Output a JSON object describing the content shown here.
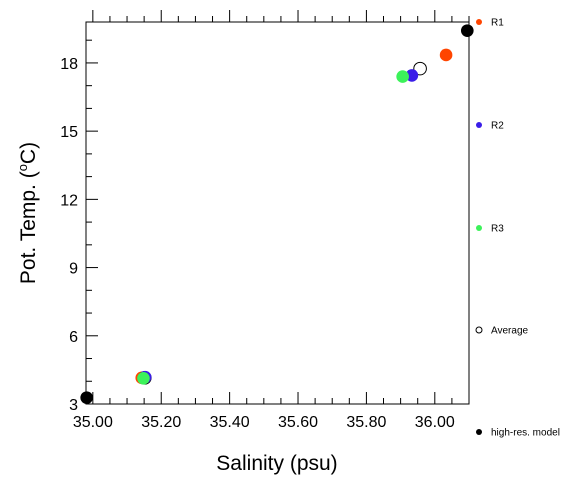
{
  "chart_data": {
    "type": "scatter",
    "title": "",
    "xlabel": "Salinity (psu)",
    "ylabel_main": "Pot. Temp. (",
    "ylabel_degree": "o",
    "ylabel_unit": "C)",
    "xlim": [
      34.98,
      36.1
    ],
    "ylim": [
      3.0,
      19.8
    ],
    "x_ticks": [
      35.0,
      35.2,
      35.4,
      35.6,
      35.8,
      36.0
    ],
    "x_tick_labels": [
      "35.00",
      "35.20",
      "35.40",
      "35.60",
      "35.80",
      "36.00"
    ],
    "x_minor_step": 0.05,
    "y_ticks": [
      3,
      6,
      9,
      12,
      15,
      18
    ],
    "y_tick_labels": [
      "3",
      "6",
      "9",
      "12",
      "15",
      "18"
    ],
    "y_minor_step": 1,
    "grid": false,
    "legend_position": "right",
    "series": [
      {
        "name": "R1",
        "color": "#ff4500",
        "fill": true,
        "points": [
          [
            35.143,
            4.15
          ],
          [
            36.033,
            18.35
          ]
        ]
      },
      {
        "name": "R2",
        "color": "#3a1de8",
        "fill": true,
        "points": [
          [
            35.153,
            4.18
          ],
          [
            35.933,
            17.45
          ]
        ]
      },
      {
        "name": "R3",
        "color": "#3cf25a",
        "fill": true,
        "points": [
          [
            35.148,
            4.13
          ],
          [
            35.906,
            17.4
          ]
        ]
      },
      {
        "name": "Average",
        "color": "#000000",
        "fill": false,
        "points": [
          [
            35.152,
            4.15
          ],
          [
            35.957,
            17.75
          ]
        ]
      },
      {
        "name": "high-res. model",
        "color": "#000000",
        "fill": true,
        "points": [
          [
            34.982,
            3.28
          ],
          [
            36.095,
            19.42
          ]
        ]
      }
    ]
  }
}
